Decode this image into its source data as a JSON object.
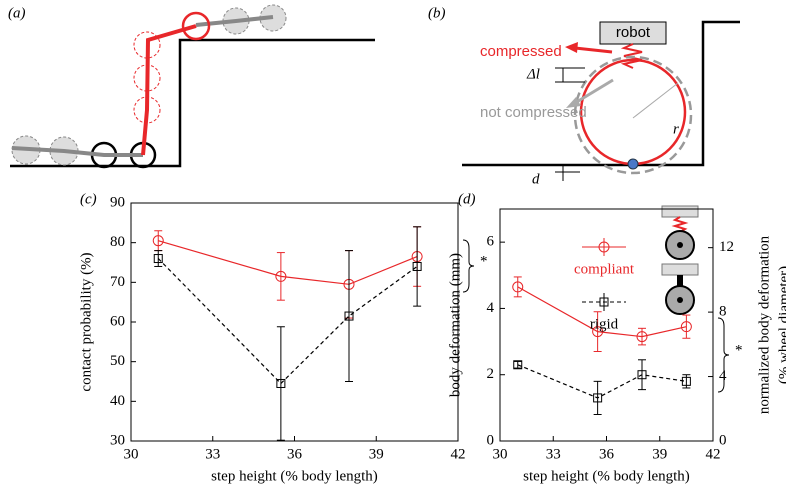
{
  "panels": [
    "(a)",
    "(b)",
    "(c)",
    "(d)"
  ],
  "diagram_b": {
    "robot": "robot",
    "compressed": "compressed",
    "delta": "Δl",
    "not_compressed": "not compressed",
    "radius": "r",
    "depth": "d"
  },
  "chart_data": [
    {
      "type": "line",
      "x": [
        31,
        35.5,
        38,
        40.5
      ],
      "series": [
        {
          "name": "compliant",
          "color": "#e8272a",
          "marker": "circle",
          "linestyle": "solid",
          "values": [
            80.5,
            71.5,
            69.5,
            76.5
          ],
          "errors": [
            2.5,
            6,
            8.5,
            7.5
          ]
        },
        {
          "name": "rigid",
          "color": "#000000",
          "marker": "square",
          "linestyle": "dashed",
          "values": [
            76,
            44.5,
            61.5,
            74
          ],
          "errors": [
            2,
            14.3,
            16.5,
            10
          ]
        }
      ],
      "xlim": [
        30,
        42
      ],
      "xticks": [
        30,
        33,
        36,
        39,
        42
      ],
      "ylim": [
        30,
        90
      ],
      "yticks": [
        30,
        40,
        50,
        60,
        70,
        80,
        90
      ],
      "xlabel": "step height (% body length)",
      "ylabel": "contact probability (%)",
      "annotation": "*",
      "legend": false
    },
    {
      "type": "line",
      "x": [
        31,
        35.5,
        38,
        40.5
      ],
      "series": [
        {
          "name": "compliant",
          "color": "#e8272a",
          "marker": "circle",
          "linestyle": "solid",
          "values": [
            4.65,
            3.3,
            3.15,
            3.45
          ],
          "errors": [
            0.3,
            0.6,
            0.25,
            0.35
          ]
        },
        {
          "name": "rigid",
          "color": "#000000",
          "marker": "square",
          "linestyle": "dashed",
          "values": [
            2.3,
            1.3,
            2.0,
            1.8
          ],
          "errors": [
            0.1,
            0.5,
            0.45,
            0.2
          ]
        }
      ],
      "xlim": [
        30,
        42
      ],
      "xticks": [
        30,
        33,
        36,
        39,
        42
      ],
      "ylim": [
        0,
        7
      ],
      "yticks": [
        0,
        2,
        4,
        6
      ],
      "y2lim": [
        0,
        14.4
      ],
      "y2ticks": [
        0,
        4,
        8,
        12
      ],
      "xlabel": "step height (% body length)",
      "ylabel": "body deformation (mm)",
      "y2label": [
        "normalized body deformation",
        "(% wheel diameter)"
      ],
      "annotation": "*",
      "legend": true
    }
  ]
}
